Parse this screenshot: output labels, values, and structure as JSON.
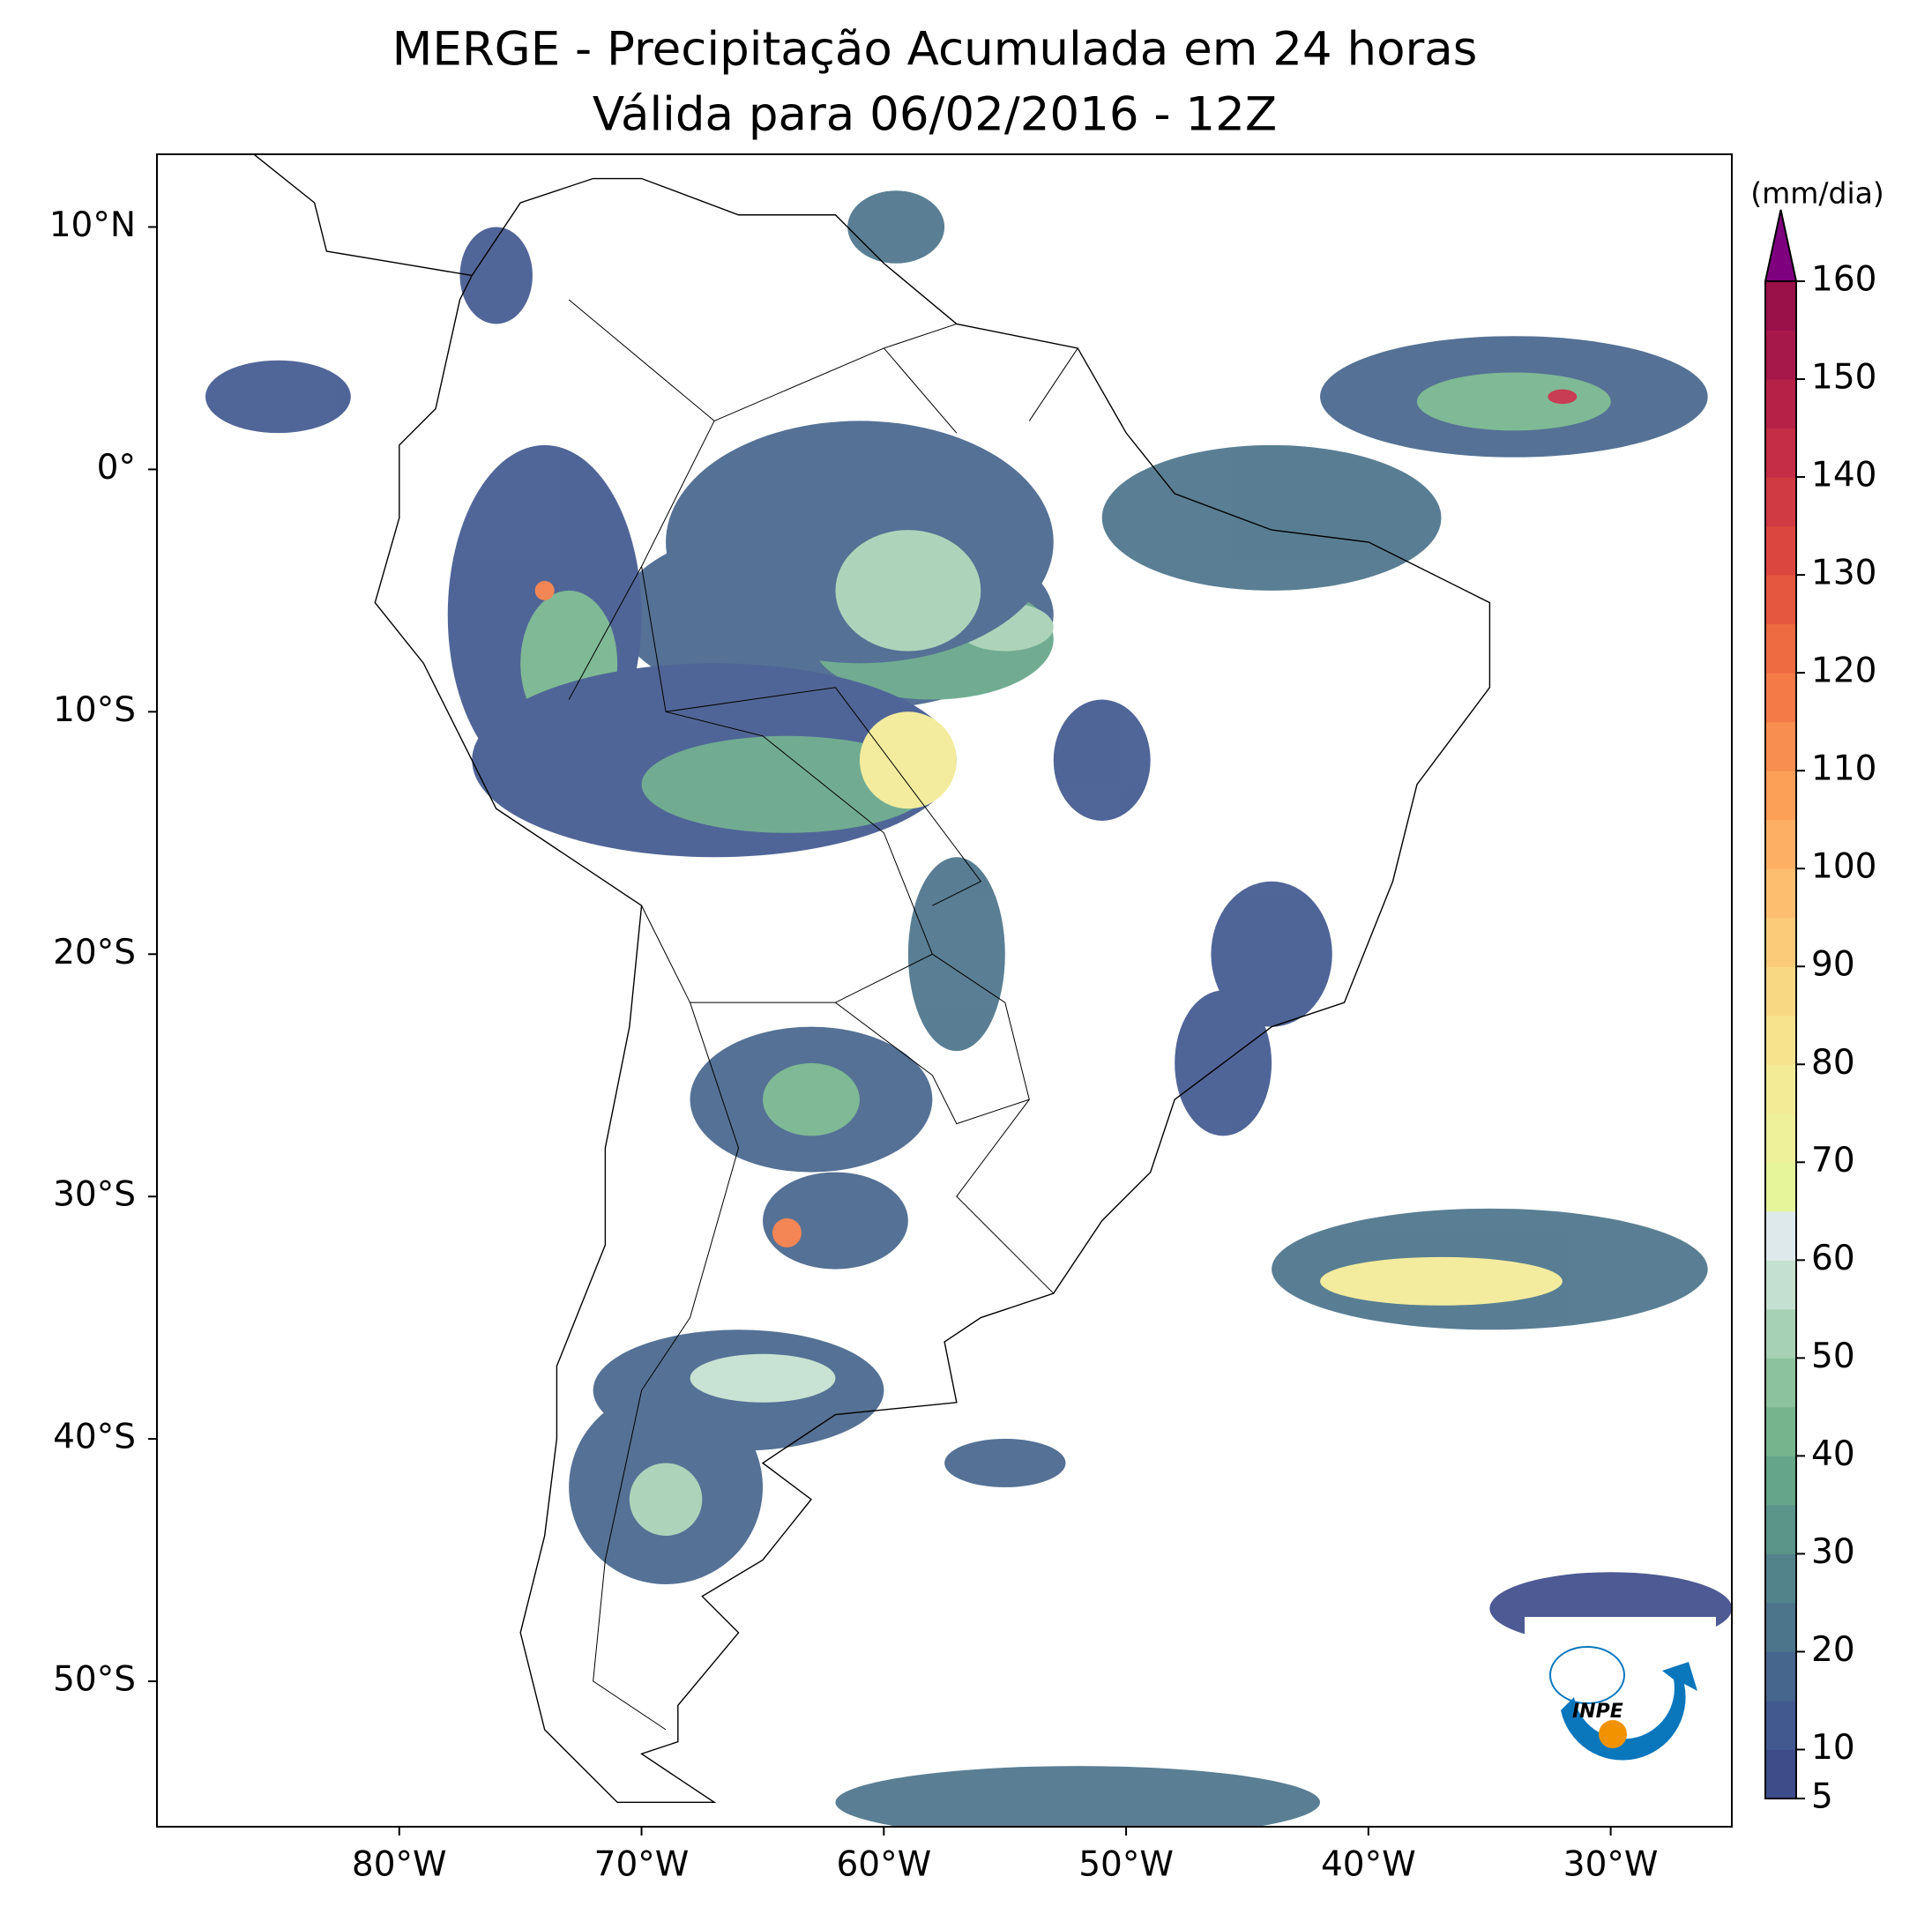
{
  "map_data": {
    "title": [
      "MERGE - Precipitação Acumulada em 24 horas",
      "Válida para 06/02/2016 - 12Z"
    ],
    "xlim": [
      -90,
      -25
    ],
    "ylim": [
      -56,
      13
    ],
    "xticks": [
      {
        "value": -80,
        "label": "80°W"
      },
      {
        "value": -70,
        "label": "70°W"
      },
      {
        "value": -60,
        "label": "60°W"
      },
      {
        "value": -50,
        "label": "50°W"
      },
      {
        "value": -40,
        "label": "40°W"
      },
      {
        "value": -30,
        "label": "30°W"
      }
    ],
    "yticks": [
      {
        "value": 10,
        "label": "10°N"
      },
      {
        "value": 0,
        "label": "0°"
      },
      {
        "value": -10,
        "label": "10°S"
      },
      {
        "value": -20,
        "label": "20°S"
      },
      {
        "value": -30,
        "label": "30°S"
      },
      {
        "value": -40,
        "label": "40°S"
      },
      {
        "value": -50,
        "label": "50°S"
      }
    ],
    "colorbar": {
      "unit": "(mm/dia)",
      "ticks": [
        5,
        10,
        20,
        30,
        40,
        50,
        60,
        70,
        80,
        90,
        100,
        110,
        120,
        130,
        140,
        150,
        160
      ],
      "colors": [
        "#3e4c8a",
        "#42598f",
        "#47668d",
        "#4c748b",
        "#53838a",
        "#5b9489",
        "#65a589",
        "#75b48d",
        "#8cc29d",
        "#a7d1b5",
        "#c4e0d0",
        "#dde9ea",
        "#e6f49a",
        "#eef09a",
        "#f3eb96",
        "#f7e28e",
        "#f9d884",
        "#fbcb7a",
        "#fdbf6f",
        "#fdb063",
        "#fca058",
        "#f88e4f",
        "#f47b47",
        "#ee6a41",
        "#e5573f",
        "#db463f",
        "#d03a42",
        "#c42d45",
        "#b52147",
        "#a7184a",
        "#9a1048"
      ],
      "extend_color": "#7f007f"
    },
    "logo": "INPE"
  }
}
